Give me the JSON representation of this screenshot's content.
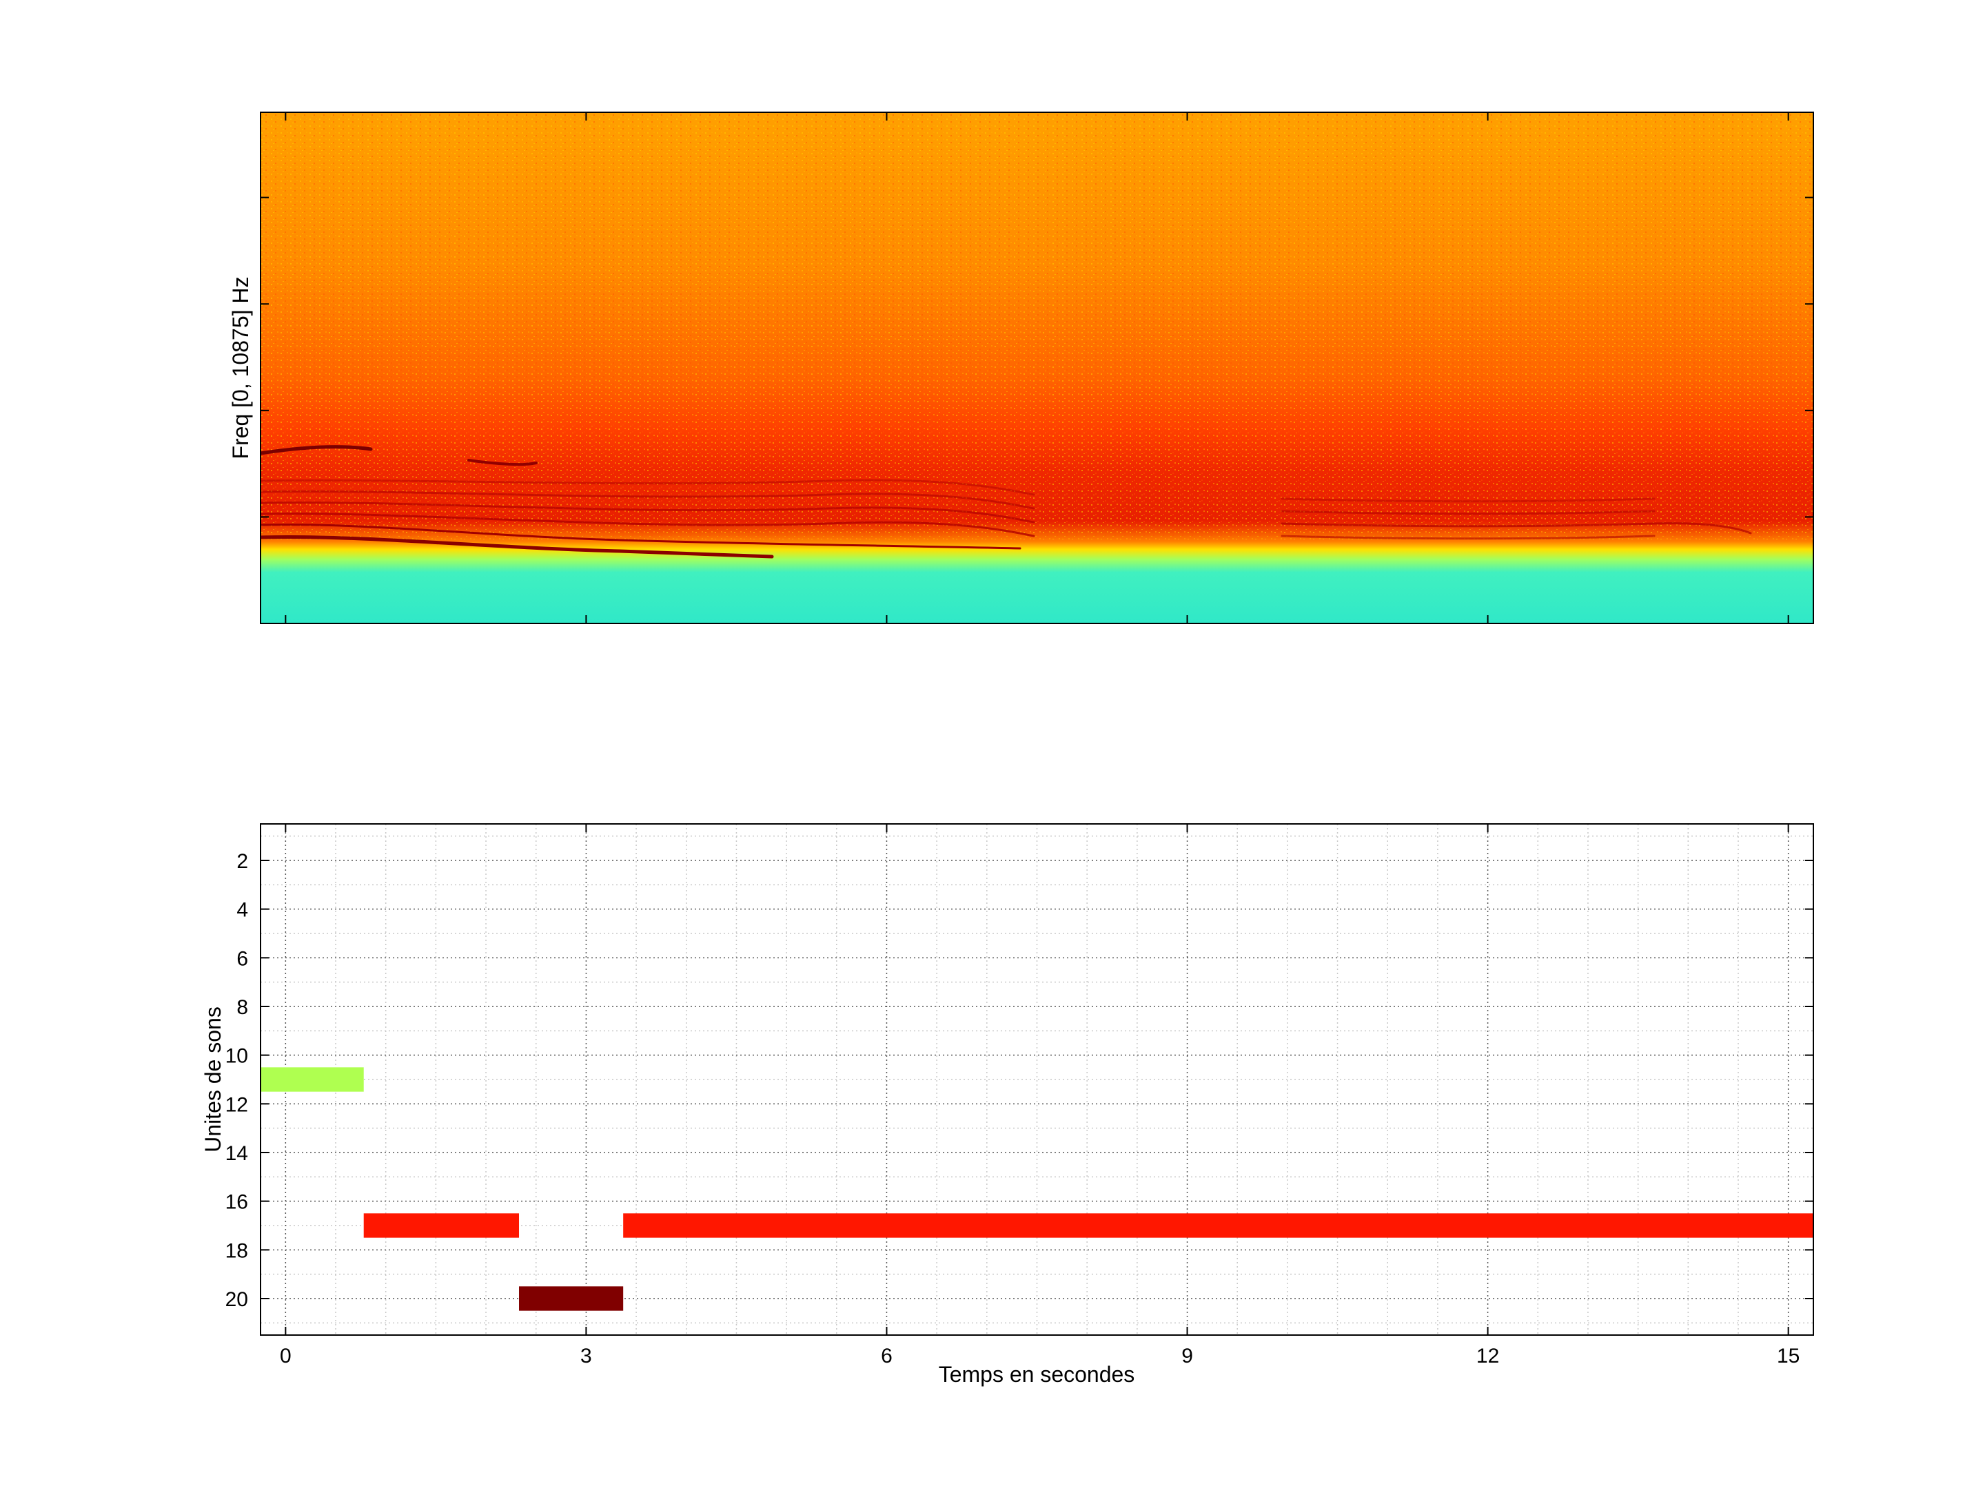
{
  "chart_data": [
    {
      "type": "heatmap",
      "subtype": "spectrogram",
      "ylabel": "Freq [0, 10875] Hz",
      "xlabel": "",
      "colormap": "jet",
      "grid": false,
      "x_ticks_labeled": false,
      "y_ticks_labeled": false,
      "frequency_range_hz": [
        0,
        10875
      ],
      "time_range_s": [
        -0.25,
        15.25
      ],
      "description_bands": [
        {
          "region": "top",
          "color_name": "orange"
        },
        {
          "region": "lower",
          "color_name": "red harmonics"
        },
        {
          "region": "bottom",
          "color_name": "cyan"
        }
      ]
    },
    {
      "type": "bar",
      "subtype": "timeline",
      "xlabel": "Temps en secondes",
      "ylabel": "Unites de sons",
      "xlim": [
        -0.25,
        15.25
      ],
      "ylim": [
        21.5,
        0.5
      ],
      "y_reversed": true,
      "grid": true,
      "xticks": [
        0,
        3,
        6,
        9,
        12,
        15
      ],
      "yticks": [
        2,
        4,
        6,
        8,
        10,
        12,
        14,
        16,
        18,
        20
      ],
      "segments": [
        {
          "unit": 11,
          "start": -0.25,
          "end": 0.78,
          "color": "#afff50"
        },
        {
          "unit": 17,
          "start": 0.78,
          "end": 2.33,
          "color": "#ff1700"
        },
        {
          "unit": 20,
          "start": 2.33,
          "end": 3.37,
          "color": "#800000"
        },
        {
          "unit": 17,
          "start": 3.37,
          "end": 15.25,
          "color": "#ff1700"
        }
      ]
    }
  ]
}
